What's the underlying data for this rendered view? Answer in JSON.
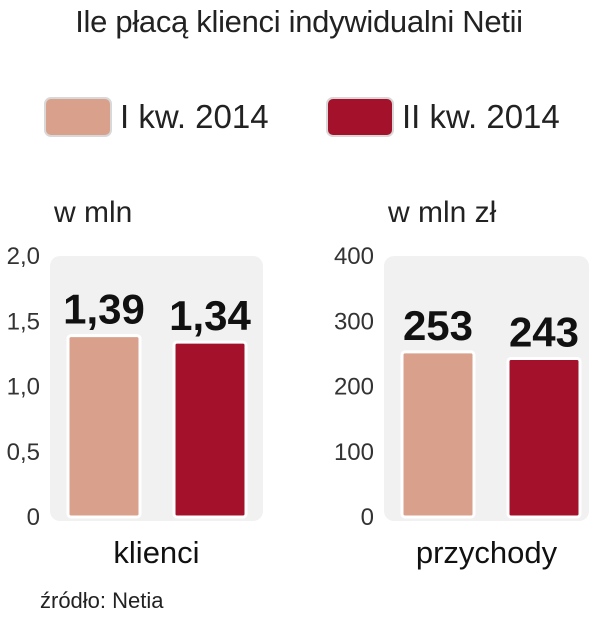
{
  "title": "Ile płacą klienci indywidualni Netii",
  "legend": [
    {
      "label": "I kw. 2014",
      "color": "#d9a18b"
    },
    {
      "label": "II kw. 2014",
      "color": "#a4112b"
    }
  ],
  "source": "źródło: Netia",
  "chart_data": [
    {
      "type": "bar",
      "unit_label": "w mln",
      "category": "klienci",
      "series": [
        {
          "name": "I kw. 2014",
          "value": 1.39,
          "label": "1,39"
        },
        {
          "name": "II kw. 2014",
          "value": 1.34,
          "label": "1,34"
        }
      ],
      "ylim": [
        0,
        2.0
      ],
      "yticks": [
        0,
        0.5,
        1.0,
        1.5,
        2.0
      ],
      "ytick_labels": [
        "0",
        "0,5",
        "1,0",
        "1,5",
        "2,0"
      ]
    },
    {
      "type": "bar",
      "unit_label": "w mln zł",
      "category": "przychody",
      "series": [
        {
          "name": "I kw. 2014",
          "value": 253,
          "label": "253"
        },
        {
          "name": "II kw. 2014",
          "value": 243,
          "label": "243"
        }
      ],
      "ylim": [
        0,
        400
      ],
      "yticks": [
        0,
        100,
        200,
        300,
        400
      ],
      "ytick_labels": [
        "0",
        "100",
        "200",
        "300",
        "400"
      ]
    }
  ]
}
